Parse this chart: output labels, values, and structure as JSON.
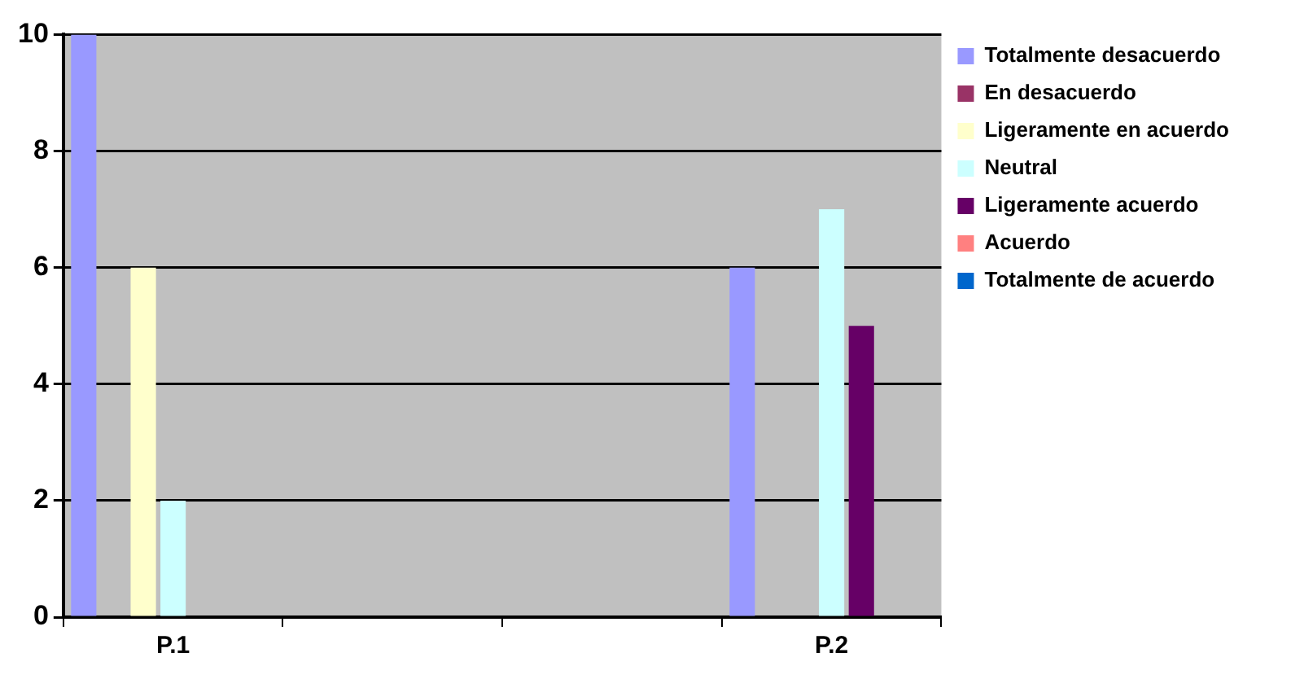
{
  "chart_data": {
    "type": "bar",
    "categories": [
      "P.1",
      null,
      null,
      "P.2"
    ],
    "series": [
      {
        "name": "Totalmente desacuerdo",
        "color": "#9999ff",
        "values": [
          10,
          null,
          null,
          6
        ]
      },
      {
        "name": "En desacuerdo",
        "color": "#993366",
        "values": [
          0,
          null,
          null,
          0
        ]
      },
      {
        "name": "Ligeramente en acuerdo",
        "color": "#ffffcc",
        "values": [
          6,
          null,
          null,
          0
        ]
      },
      {
        "name": "Neutral",
        "color": "#ccffff",
        "values": [
          2,
          null,
          null,
          7
        ]
      },
      {
        "name": "Ligeramente acuerdo",
        "color": "#660066",
        "values": [
          0,
          null,
          null,
          5
        ]
      },
      {
        "name": "Acuerdo",
        "color": "#ff8080",
        "values": [
          0,
          null,
          null,
          0
        ]
      },
      {
        "name": "Totalmente de acuerdo",
        "color": "#0066cc",
        "values": [
          0,
          null,
          null,
          0
        ]
      }
    ],
    "ylim": [
      0,
      10
    ],
    "yticks": [
      0,
      2,
      4,
      6,
      8,
      10
    ],
    "grid": "y",
    "legend": "right"
  }
}
